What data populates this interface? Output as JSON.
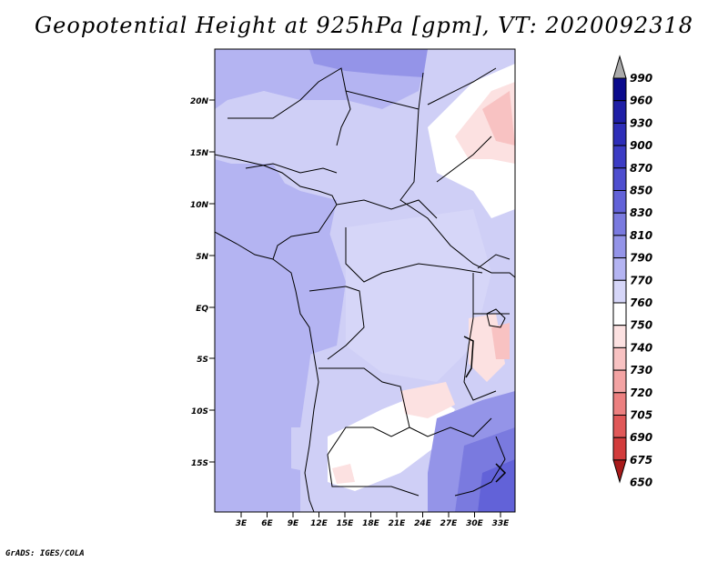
{
  "title": "Geopotential Height at 925hPa [gpm], VT: 2020092318",
  "credit": "GrADS: IGES/COLA",
  "map": {
    "lat_labels": [
      "20N",
      "15N",
      "10N",
      "5N",
      "EQ",
      "5S",
      "10S",
      "15S"
    ],
    "lon_labels": [
      "3E",
      "6E",
      "9E",
      "12E",
      "15E",
      "18E",
      "21E",
      "24E",
      "27E",
      "30E",
      "33E"
    ]
  },
  "colorbar": {
    "levels": [
      "990",
      "960",
      "930",
      "900",
      "870",
      "850",
      "830",
      "810",
      "790",
      "770",
      "760",
      "750",
      "740",
      "730",
      "720",
      "705",
      "690",
      "675",
      "650"
    ],
    "colors": [
      "#0a0a8c",
      "#1f1fa6",
      "#2e2eb8",
      "#3c3cc4",
      "#4e4ecf",
      "#6262d8",
      "#7a7adf",
      "#9494e8",
      "#b4b4f2",
      "#d6d6f8",
      "#ffffff",
      "#fce1e1",
      "#f8c2c2",
      "#f3a3a3",
      "#ec8080",
      "#e05858",
      "#d23c3c",
      "#c02626",
      "#a81a1a"
    ]
  }
}
